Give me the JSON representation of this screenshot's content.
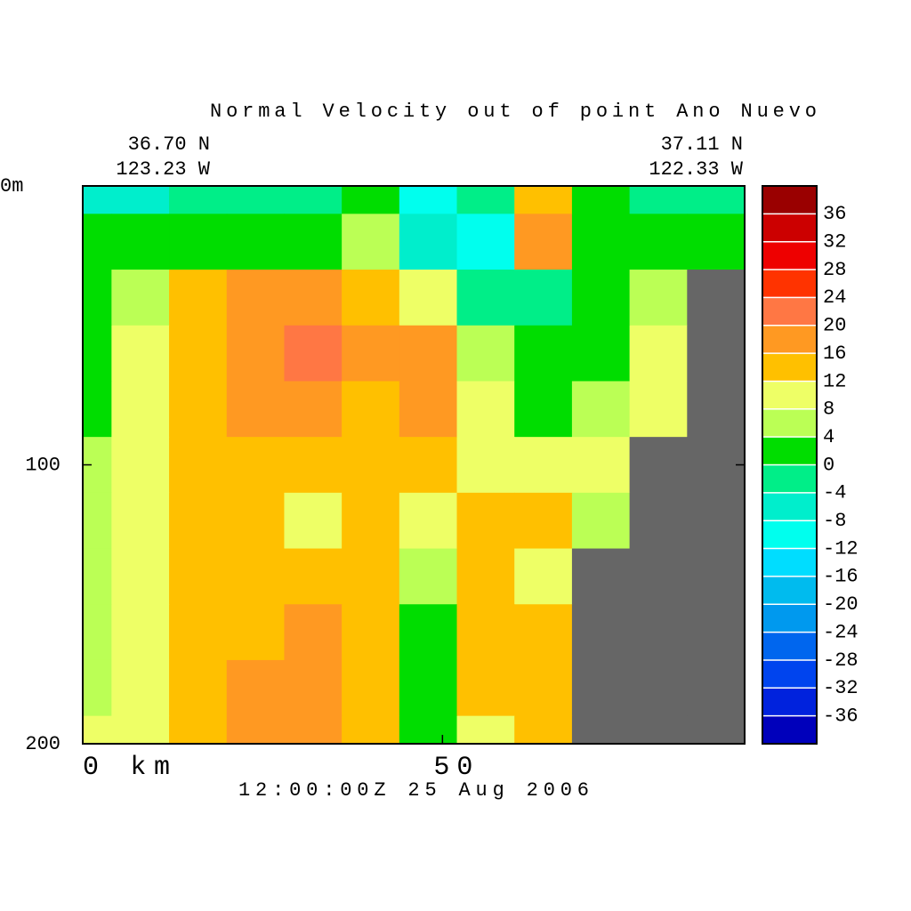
{
  "chart_data": {
    "type": "contour",
    "title": "Normal Velocity out of point Ano Nuevo",
    "corner_labels": {
      "top_left": [
        "36.70 N",
        "123.23 W"
      ],
      "top_right": [
        "37.11 N",
        "122.33 W"
      ]
    },
    "time_label": "12:00:00Z  25 Aug 2006",
    "xlim": [
      0,
      92
    ],
    "xticks": [
      {
        "value": 0,
        "label": "0 km"
      },
      50
    ],
    "ylim": [
      0,
      200
    ],
    "yticks": [
      {
        "value": 0,
        "label": "0m"
      },
      100,
      200
    ],
    "y_inverted": true,
    "land_color": "#666666",
    "field": {
      "x": [
        0,
        8,
        16,
        24,
        32,
        40,
        48,
        56,
        64,
        72,
        80,
        88
      ],
      "y": [
        0,
        20,
        40,
        60,
        80,
        100,
        120,
        140,
        160,
        180,
        200
      ],
      "values": [
        [
          -6,
          -6,
          -4,
          -2,
          -2,
          2,
          -10,
          -2,
          14,
          2,
          -2,
          -2
        ],
        [
          2,
          2,
          2,
          2,
          2,
          6,
          -6,
          -10,
          18,
          2,
          2,
          2
        ],
        [
          2,
          6,
          14,
          18,
          18,
          14,
          10,
          -2,
          -2,
          2,
          6,
          null
        ],
        [
          2,
          10,
          14,
          18,
          22,
          18,
          18,
          6,
          2,
          2,
          10,
          null
        ],
        [
          2,
          10,
          14,
          18,
          18,
          14,
          18,
          10,
          2,
          6,
          10,
          null
        ],
        [
          6,
          10,
          14,
          14,
          14,
          14,
          14,
          10,
          10,
          10,
          null,
          null
        ],
        [
          6,
          10,
          14,
          14,
          10,
          14,
          10,
          14,
          14,
          6,
          null,
          null
        ],
        [
          6,
          10,
          14,
          14,
          14,
          14,
          6,
          14,
          10,
          null,
          null,
          null
        ],
        [
          6,
          10,
          14,
          14,
          18,
          14,
          2,
          14,
          14,
          null,
          null,
          null
        ],
        [
          6,
          10,
          14,
          18,
          18,
          14,
          2,
          14,
          14,
          null,
          null,
          null
        ],
        [
          10,
          10,
          14,
          18,
          18,
          14,
          2,
          10,
          14,
          null,
          null,
          null
        ]
      ]
    },
    "colorbar": {
      "levels": [
        36,
        32,
        28,
        24,
        20,
        16,
        12,
        8,
        4,
        0,
        -4,
        -8,
        -12,
        -16,
        -20,
        -24,
        -28,
        -32,
        -36
      ],
      "colors": [
        "#9a0000",
        "#cc0000",
        "#ee0000",
        "#ff3300",
        "#ff7744",
        "#ff9922",
        "#ffc000",
        "#eeff66",
        "#bbff55",
        "#00dd00",
        "#00ee88",
        "#00eecc",
        "#00ffee",
        "#00ddff",
        "#00bbee",
        "#0099ee",
        "#0066ee",
        "#0044ee",
        "#0022dd",
        "#0000bb"
      ]
    }
  }
}
